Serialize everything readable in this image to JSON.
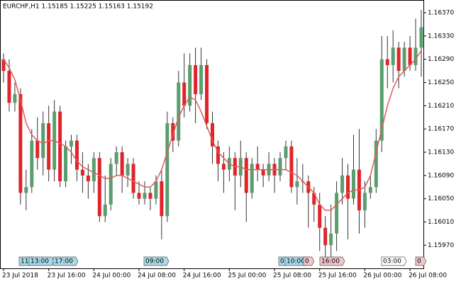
{
  "chart_data": {
    "type": "candlestick",
    "title": "EURCHF,H1  1.15185 1.15225 1.15163 1.15192",
    "categories": [
      "23 Jul 2018",
      null,
      null,
      null,
      null,
      null,
      null,
      null,
      "23 Jul 16:00",
      null,
      null,
      null,
      null,
      null,
      null,
      null,
      "24 Jul 00:00",
      null,
      null,
      null,
      null,
      null,
      null,
      null,
      "24 Jul 08:00",
      null,
      null,
      null,
      null,
      null,
      null,
      null,
      "24 Jul 16:00",
      null,
      null,
      null,
      null,
      null,
      null,
      null,
      "25 Jul 00:00",
      null,
      null,
      null,
      null,
      null,
      null,
      null,
      "25 Jul 08:00",
      null,
      null,
      null,
      null,
      null,
      null,
      null,
      "25 Jul 16:00",
      null,
      null,
      null,
      null,
      null,
      null,
      null,
      "26 Jul 00:00",
      null,
      null,
      null,
      null,
      null,
      null,
      null,
      "26 Jul 08:00",
      null,
      null
    ],
    "open": [
      1.1629,
      1.1627,
      1.16215,
      1.1623,
      1.1606,
      1.1607,
      1.1615,
      1.1612,
      1.1618,
      1.161,
      1.162,
      1.1608,
      1.1614,
      1.1615,
      1.161,
      1.1609,
      1.1608,
      1.1612,
      1.1602,
      1.1604,
      1.1611,
      1.1613,
      1.1609,
      1.1611,
      1.1606,
      1.1605,
      1.1606,
      1.1605,
      1.1608,
      1.1602,
      1.1618,
      1.1615,
      1.1625,
      1.1621,
      1.1628,
      1.1623,
      1.1628,
      1.1618,
      1.1614,
      1.1611,
      1.161,
      1.1612,
      1.1609,
      1.1612,
      1.1606,
      1.1611,
      1.161,
      1.1609,
      1.1611,
      1.1609,
      1.1612,
      1.1614,
      1.1607,
      1.1608,
      1.1608,
      1.1606,
      1.1604,
      1.16,
      1.1597,
      1.1599,
      1.1606,
      1.1609,
      1.1605,
      1.161,
      1.1603,
      1.1606,
      1.1607,
      1.1615,
      1.1629,
      1.1628,
      1.1631,
      1.1627,
      1.1631,
      1.1628,
      1.1631
    ],
    "high": [
      1.163,
      1.1629,
      1.1625,
      1.1624,
      1.161,
      1.1617,
      1.1619,
      1.162,
      1.1621,
      1.1622,
      1.1621,
      1.1615,
      1.1616,
      1.1616,
      1.1613,
      1.1611,
      1.1613,
      1.1613,
      1.1609,
      1.1612,
      1.1614,
      1.1614,
      1.1612,
      1.1612,
      1.1608,
      1.1608,
      1.1607,
      1.1609,
      1.161,
      1.162,
      1.1619,
      1.1627,
      1.163,
      1.163,
      1.1631,
      1.1631,
      1.1629,
      1.162,
      1.1615,
      1.1613,
      1.1614,
      1.1613,
      1.1615,
      1.1613,
      1.1612,
      1.1614,
      1.1611,
      1.1613,
      1.1612,
      1.1613,
      1.1615,
      1.1615,
      1.1612,
      1.1611,
      1.1609,
      1.1607,
      1.1606,
      1.1602,
      1.1604,
      1.1608,
      1.1612,
      1.1611,
      1.1616,
      1.1617,
      1.1608,
      1.1609,
      1.1617,
      1.1633,
      1.1633,
      1.1634,
      1.1632,
      1.1632,
      1.1633,
      1.1636,
      1.16375
    ],
    "low": [
      1.1625,
      1.162,
      1.162,
      1.1604,
      1.1603,
      1.1606,
      1.161,
      1.1609,
      1.1608,
      1.1608,
      1.1607,
      1.1607,
      1.1611,
      1.1608,
      1.1606,
      1.1605,
      1.1606,
      1.1601,
      1.1601,
      1.1603,
      1.1609,
      1.1606,
      1.1607,
      1.1605,
      1.1604,
      1.1604,
      1.1603,
      1.1604,
      1.1598,
      1.1601,
      1.1613,
      1.1614,
      1.1619,
      1.162,
      1.1618,
      1.1622,
      1.1617,
      1.1611,
      1.1608,
      1.1606,
      1.1608,
      1.1603,
      1.1607,
      1.1601,
      1.1605,
      1.1608,
      1.1607,
      1.1608,
      1.1606,
      1.1608,
      1.161,
      1.1606,
      1.1604,
      1.1606,
      1.16,
      1.1601,
      1.1596,
      1.1595,
      1.1595,
      1.1596,
      1.1604,
      1.1598,
      1.1604,
      1.1599,
      1.16,
      1.1605,
      1.1606,
      1.1613,
      1.1624,
      1.1625,
      1.1624,
      1.1626,
      1.1627,
      1.1627,
      1.1626
    ],
    "close": [
      1.1627,
      1.16215,
      1.1623,
      1.1606,
      1.1607,
      1.1615,
      1.1612,
      1.1618,
      1.161,
      1.162,
      1.1608,
      1.1614,
      1.1615,
      1.161,
      1.1609,
      1.1608,
      1.1612,
      1.1602,
      1.1604,
      1.1611,
      1.1613,
      1.1609,
      1.1611,
      1.1606,
      1.1605,
      1.1606,
      1.1605,
      1.1608,
      1.1602,
      1.1618,
      1.1615,
      1.1625,
      1.1621,
      1.1628,
      1.1623,
      1.1628,
      1.1618,
      1.1614,
      1.1611,
      1.161,
      1.1612,
      1.1609,
      1.1612,
      1.1606,
      1.1611,
      1.161,
      1.1609,
      1.1611,
      1.1609,
      1.1612,
      1.1614,
      1.1607,
      1.1608,
      1.1608,
      1.1606,
      1.1604,
      1.16,
      1.1597,
      1.1599,
      1.1606,
      1.1609,
      1.1605,
      1.161,
      1.1603,
      1.1606,
      1.1607,
      1.1615,
      1.1629,
      1.1628,
      1.1631,
      1.1627,
      1.1631,
      1.1628,
      1.1631,
      1.16345
    ],
    "ma": {
      "color": "#e05a5a",
      "values": [
        1.1629,
        1.16275,
        1.16255,
        1.1622,
        1.1618,
        1.1616,
        1.1615,
        1.16145,
        1.1615,
        1.1615,
        1.16145,
        1.1614,
        1.1613,
        1.16115,
        1.16105,
        1.161,
        1.16095,
        1.1609,
        1.16085,
        1.16085,
        1.1609,
        1.1609,
        1.16085,
        1.1608,
        1.16075,
        1.1607,
        1.1607,
        1.1608,
        1.161,
        1.1613,
        1.1616,
        1.1619,
        1.1621,
        1.16225,
        1.1622,
        1.162,
        1.16175,
        1.1615,
        1.1613,
        1.1612,
        1.1611,
        1.16105,
        1.16105,
        1.161,
        1.161,
        1.161,
        1.161,
        1.161,
        1.161,
        1.161,
        1.161,
        1.16095,
        1.1609,
        1.1608,
        1.1607,
        1.1606,
        1.1604,
        1.1603,
        1.1603,
        1.1604,
        1.1605,
        1.1606,
        1.16065,
        1.16065,
        1.1607,
        1.1609,
        1.1613,
        1.1617,
        1.1621,
        1.1624,
        1.1626,
        1.1627,
        1.1628,
        1.1629,
        1.16305
      ]
    },
    "up_color": "#5a9e6f",
    "down_color": "#e0242a",
    "wick_color": "#333333",
    "ylim": [
      1.15929,
      1.16392
    ],
    "yticks": [
      {
        "value": 1.1637,
        "label": "1.16370"
      },
      {
        "value": 1.1633,
        "label": "1.16330"
      },
      {
        "value": 1.1629,
        "label": "1.16290"
      },
      {
        "value": 1.1625,
        "label": "1.16250"
      },
      {
        "value": 1.1621,
        "label": "1.16210"
      },
      {
        "value": 1.1617,
        "label": "1.16170"
      },
      {
        "value": 1.1613,
        "label": "1.16130"
      },
      {
        "value": 1.1609,
        "label": "1.16090"
      },
      {
        "value": 1.1605,
        "label": "1.16050"
      },
      {
        "value": 1.1601,
        "label": "1.16010"
      },
      {
        "value": 1.1597,
        "label": "1.15970"
      }
    ],
    "grid": false,
    "tags": [
      {
        "text": "11:",
        "color": "#a9dbe8"
      },
      {
        "text": "13:00",
        "color": "#a9dbe8"
      },
      {
        "text": "17:00",
        "color": "#a9dbe8"
      },
      {
        "text": "09:00",
        "color": "#a9dbe8"
      },
      {
        "text": "0",
        "color": "#a9dbe8"
      },
      {
        "text": "10:00",
        "color": "#a9dbe8"
      },
      {
        "text": "0",
        "color": "#f2c6cc"
      },
      {
        "text": "16:00",
        "color": "#f2c6cc"
      },
      {
        "text": "03:00",
        "color": "#ffffff"
      },
      {
        "text": "0",
        "color": "#f2c6cc"
      }
    ]
  }
}
